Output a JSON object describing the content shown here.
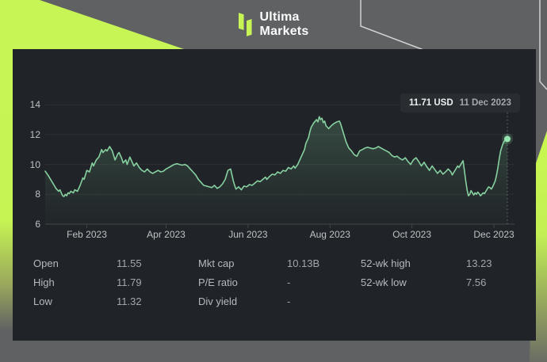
{
  "brand": {
    "name_line1": "Ultima",
    "name_line2": "Markets"
  },
  "tooltip": {
    "price": "11.71 USD",
    "date": "11 Dec 2023"
  },
  "stats": {
    "columns": [
      {
        "rows": [
          {
            "label": "Open",
            "value": "11.55"
          },
          {
            "label": "High",
            "value": "11.79"
          },
          {
            "label": "Low",
            "value": "11.32"
          }
        ]
      },
      {
        "rows": [
          {
            "label": "Mkt cap",
            "value": "10.13B"
          },
          {
            "label": "P/E ratio",
            "value": "-"
          },
          {
            "label": "Div yield",
            "value": "-"
          }
        ]
      },
      {
        "rows": [
          {
            "label": "52-wk high",
            "value": "13.23"
          },
          {
            "label": "52-wk low",
            "value": "7.56"
          }
        ]
      }
    ]
  },
  "colors": {
    "background_gray": "#606163",
    "accent_lime": "#c7f556",
    "panel_dark": "#202327",
    "line_green": "#87d1a1",
    "marker_green": "#96e5b0",
    "gridline": "#2e3135",
    "axis": "#41454a",
    "tick_text": "#bfc2c5"
  },
  "chart_data": {
    "type": "line",
    "unit": "USD",
    "xlabel": "",
    "ylabel": "",
    "x_ticks": [
      {
        "label": "Feb 2023",
        "day": 31
      },
      {
        "label": "Apr 2023",
        "day": 90
      },
      {
        "label": "Jun 2023",
        "day": 151
      },
      {
        "label": "Aug 2023",
        "day": 212
      },
      {
        "label": "Oct 2023",
        "day": 273
      },
      {
        "label": "Dec 2023",
        "day": 334
      }
    ],
    "y_ticks": [
      6,
      8,
      10,
      12,
      14
    ],
    "x_domain_days": [
      0,
      344
    ],
    "y_domain": [
      6,
      14
    ],
    "grid": true,
    "legend": "none",
    "last_point": {
      "day": 344,
      "value": 11.71,
      "date": "11 Dec 2023"
    },
    "points": [
      [
        0,
        9.55
      ],
      [
        2,
        9.3
      ],
      [
        4,
        9.0
      ],
      [
        6,
        8.7
      ],
      [
        8,
        8.4
      ],
      [
        10,
        8.2
      ],
      [
        11,
        8.3
      ],
      [
        12,
        8.1
      ],
      [
        13,
        7.9
      ],
      [
        14,
        7.85
      ],
      [
        15,
        8.0
      ],
      [
        16,
        7.9
      ],
      [
        17,
        8.1
      ],
      [
        18,
        8.05
      ],
      [
        19,
        8.2
      ],
      [
        21,
        8.1
      ],
      [
        22,
        8.3
      ],
      [
        24,
        8.2
      ],
      [
        26,
        8.6
      ],
      [
        28,
        9.1
      ],
      [
        29,
        9.0
      ],
      [
        30,
        9.3
      ],
      [
        31,
        9.6
      ],
      [
        33,
        9.5
      ],
      [
        34,
        9.8
      ],
      [
        35,
        10.1
      ],
      [
        36,
        9.9
      ],
      [
        38,
        10.3
      ],
      [
        40,
        10.5
      ],
      [
        42,
        11.0
      ],
      [
        43,
        10.8
      ],
      [
        45,
        11.0
      ],
      [
        46,
        10.9
      ],
      [
        48,
        11.2
      ],
      [
        50,
        10.9
      ],
      [
        51,
        10.6
      ],
      [
        52,
        10.3
      ],
      [
        54,
        10.7
      ],
      [
        55,
        10.8
      ],
      [
        57,
        10.4
      ],
      [
        58,
        10.1
      ],
      [
        60,
        10.3
      ],
      [
        61,
        10.0
      ],
      [
        63,
        10.5
      ],
      [
        64,
        10.3
      ],
      [
        66,
        9.9
      ],
      [
        68,
        10.1
      ],
      [
        70,
        9.8
      ],
      [
        72,
        9.6
      ],
      [
        74,
        9.5
      ],
      [
        76,
        9.7
      ],
      [
        78,
        9.5
      ],
      [
        80,
        9.4
      ],
      [
        82,
        9.5
      ],
      [
        84,
        9.6
      ],
      [
        86,
        9.5
      ],
      [
        88,
        9.55
      ],
      [
        90,
        9.7
      ],
      [
        92,
        9.8
      ],
      [
        94,
        9.9
      ],
      [
        96,
        10.0
      ],
      [
        98,
        10.05
      ],
      [
        100,
        10.0
      ],
      [
        102,
        9.95
      ],
      [
        104,
        10.0
      ],
      [
        106,
        9.9
      ],
      [
        108,
        9.7
      ],
      [
        110,
        9.5
      ],
      [
        112,
        9.3
      ],
      [
        114,
        9.0
      ],
      [
        116,
        8.8
      ],
      [
        118,
        8.6
      ],
      [
        120,
        8.55
      ],
      [
        122,
        8.5
      ],
      [
        124,
        8.45
      ],
      [
        126,
        8.6
      ],
      [
        128,
        8.4
      ],
      [
        130,
        8.5
      ],
      [
        132,
        8.7
      ],
      [
        134,
        9.0
      ],
      [
        136,
        9.6
      ],
      [
        138,
        9.7
      ],
      [
        139,
        9.3
      ],
      [
        140,
        8.9
      ],
      [
        141,
        8.6
      ],
      [
        142,
        8.35
      ],
      [
        144,
        8.5
      ],
      [
        146,
        8.3
      ],
      [
        148,
        8.55
      ],
      [
        150,
        8.5
      ],
      [
        152,
        8.65
      ],
      [
        154,
        8.6
      ],
      [
        156,
        8.75
      ],
      [
        158,
        8.9
      ],
      [
        160,
        8.85
      ],
      [
        162,
        9.0
      ],
      [
        164,
        9.15
      ],
      [
        165,
        9.0
      ],
      [
        167,
        9.2
      ],
      [
        169,
        9.35
      ],
      [
        171,
        9.3
      ],
      [
        173,
        9.5
      ],
      [
        175,
        9.4
      ],
      [
        177,
        9.6
      ],
      [
        179,
        9.55
      ],
      [
        181,
        9.8
      ],
      [
        183,
        9.7
      ],
      [
        185,
        9.9
      ],
      [
        186,
        9.75
      ],
      [
        188,
        10.0
      ],
      [
        189,
        10.2
      ],
      [
        191,
        10.6
      ],
      [
        193,
        11.0
      ],
      [
        194,
        11.4
      ],
      [
        196,
        11.8
      ],
      [
        197,
        12.2
      ],
      [
        198,
        12.5
      ],
      [
        200,
        12.8
      ],
      [
        202,
        13.0
      ],
      [
        203,
        12.85
      ],
      [
        204,
        13.2
      ],
      [
        205,
        13.0
      ],
      [
        206,
        13.1
      ],
      [
        207,
        12.8
      ],
      [
        208,
        12.9
      ],
      [
        209,
        12.6
      ],
      [
        211,
        12.4
      ],
      [
        213,
        12.6
      ],
      [
        215,
        12.75
      ],
      [
        217,
        12.85
      ],
      [
        219,
        12.9
      ],
      [
        220,
        12.7
      ],
      [
        221,
        12.4
      ],
      [
        222,
        12.1
      ],
      [
        223,
        11.8
      ],
      [
        224,
        11.5
      ],
      [
        226,
        11.1
      ],
      [
        228,
        10.9
      ],
      [
        230,
        10.65
      ],
      [
        232,
        10.55
      ],
      [
        234,
        10.9
      ],
      [
        236,
        11.0
      ],
      [
        238,
        11.1
      ],
      [
        240,
        11.15
      ],
      [
        242,
        11.1
      ],
      [
        244,
        11.05
      ],
      [
        246,
        11.1
      ],
      [
        248,
        11.2
      ],
      [
        250,
        11.1
      ],
      [
        252,
        11.0
      ],
      [
        254,
        10.9
      ],
      [
        256,
        10.8
      ],
      [
        258,
        10.6
      ],
      [
        260,
        10.5
      ],
      [
        262,
        10.55
      ],
      [
        264,
        10.4
      ],
      [
        266,
        10.3
      ],
      [
        268,
        10.45
      ],
      [
        270,
        10.2
      ],
      [
        272,
        10.0
      ],
      [
        274,
        10.3
      ],
      [
        276,
        10.45
      ],
      [
        278,
        10.2
      ],
      [
        280,
        9.9
      ],
      [
        282,
        10.15
      ],
      [
        284,
        9.85
      ],
      [
        286,
        9.6
      ],
      [
        288,
        9.9
      ],
      [
        290,
        9.65
      ],
      [
        292,
        9.4
      ],
      [
        294,
        9.6
      ],
      [
        296,
        9.35
      ],
      [
        298,
        9.5
      ],
      [
        300,
        9.7
      ],
      [
        302,
        9.5
      ],
      [
        303,
        9.3
      ],
      [
        305,
        9.6
      ],
      [
        307,
        9.9
      ],
      [
        308,
        9.8
      ],
      [
        310,
        10.1
      ],
      [
        311,
        10.25
      ],
      [
        312,
        9.6
      ],
      [
        313,
        8.9
      ],
      [
        314,
        8.3
      ],
      [
        315,
        7.9
      ],
      [
        316,
        8.0
      ],
      [
        317,
        8.25
      ],
      [
        318,
        8.1
      ],
      [
        319,
        7.95
      ],
      [
        320,
        8.1
      ],
      [
        321,
        8.0
      ],
      [
        322,
        8.15
      ],
      [
        323,
        8.05
      ],
      [
        324,
        7.9
      ],
      [
        325,
        8.0
      ],
      [
        326,
        8.1
      ],
      [
        327,
        8.05
      ],
      [
        328,
        8.2
      ],
      [
        329,
        8.35
      ],
      [
        330,
        8.5
      ],
      [
        331,
        8.45
      ],
      [
        332,
        8.35
      ],
      [
        333,
        8.5
      ],
      [
        334,
        8.7
      ],
      [
        335,
        8.9
      ],
      [
        336,
        9.3
      ],
      [
        337,
        9.8
      ],
      [
        338,
        10.4
      ],
      [
        339,
        10.9
      ],
      [
        340,
        11.2
      ],
      [
        341,
        11.45
      ],
      [
        342,
        11.6
      ],
      [
        343,
        11.68
      ],
      [
        344,
        11.71
      ]
    ]
  }
}
